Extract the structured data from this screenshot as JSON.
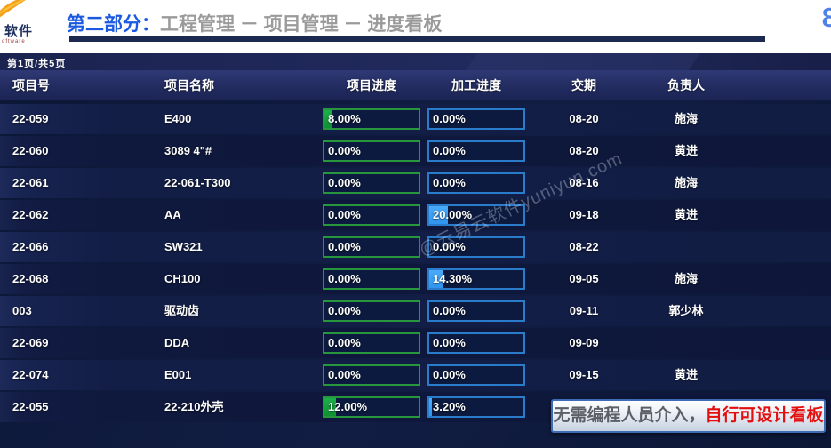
{
  "header": {
    "logo_brand": "软件",
    "logo_sub": "oftware",
    "title_prefix": "第二部分：",
    "title_rest": "工程管理 － 项目管理 － 进度看板",
    "corner_number": "8"
  },
  "board": {
    "pagination": "第1页/共5页",
    "columns": [
      "项目号",
      "项目名称",
      "项目进度",
      "加工进度",
      "交期",
      "负责人"
    ],
    "rows": [
      {
        "no": "22-059",
        "name": "E400",
        "project_label": "8.00%",
        "project_pct": 8,
        "process_label": "0.00%",
        "process_pct": 0,
        "due": "08-20",
        "owner": "施海"
      },
      {
        "no": "22-060",
        "name": "3089 4\"#",
        "project_label": "0.00%",
        "project_pct": 0,
        "process_label": "0.00%",
        "process_pct": 0,
        "due": "08-20",
        "owner": "黄进"
      },
      {
        "no": "22-061",
        "name": "22-061-T300",
        "project_label": "0.00%",
        "project_pct": 0,
        "process_label": "0.00%",
        "process_pct": 0,
        "due": "08-16",
        "owner": "施海"
      },
      {
        "no": "22-062",
        "name": "AA",
        "project_label": "0.00%",
        "project_pct": 0,
        "process_label": "20.00%",
        "process_pct": 20,
        "due": "09-18",
        "owner": "黄进"
      },
      {
        "no": "22-066",
        "name": "SW321",
        "project_label": "0.00%",
        "project_pct": 0,
        "process_label": "0.00%",
        "process_pct": 0,
        "due": "08-22",
        "owner": ""
      },
      {
        "no": "22-068",
        "name": "CH100",
        "project_label": "0.00%",
        "project_pct": 0,
        "process_label": "14.30%",
        "process_pct": 14.3,
        "due": "09-05",
        "owner": "施海"
      },
      {
        "no": "003",
        "name": "驱动齿",
        "project_label": "0.00%",
        "project_pct": 0,
        "process_label": "0.00%",
        "process_pct": 0,
        "due": "09-11",
        "owner": "郭少林"
      },
      {
        "no": "22-069",
        "name": "DDA",
        "project_label": "0.00%",
        "project_pct": 0,
        "process_label": "0.00%",
        "process_pct": 0,
        "due": "09-09",
        "owner": ""
      },
      {
        "no": "22-074",
        "name": "E001",
        "project_label": "0.00%",
        "project_pct": 0,
        "process_label": "0.00%",
        "process_pct": 0,
        "due": "09-15",
        "owner": "黄进"
      },
      {
        "no": "22-055",
        "name": "22-210外壳",
        "project_label": "12.00%",
        "project_pct": 12,
        "process_label": "3.20%",
        "process_pct": 3.2,
        "due": "",
        "owner": ""
      }
    ],
    "watermark": "@云易云软件yuniyun.com",
    "callout_plain": "无需编程人员介入，",
    "callout_highlight": "自行可设计看板"
  },
  "colors": {
    "accent_blue_title": "#1b5ae0",
    "green_border": "#27963c",
    "green_fill": "#12a33c",
    "blue_border": "#2a7ccb",
    "blue_fill": "#3fa2f7",
    "board_bg": "#0c1737",
    "callout_red": "#e30f0f"
  }
}
